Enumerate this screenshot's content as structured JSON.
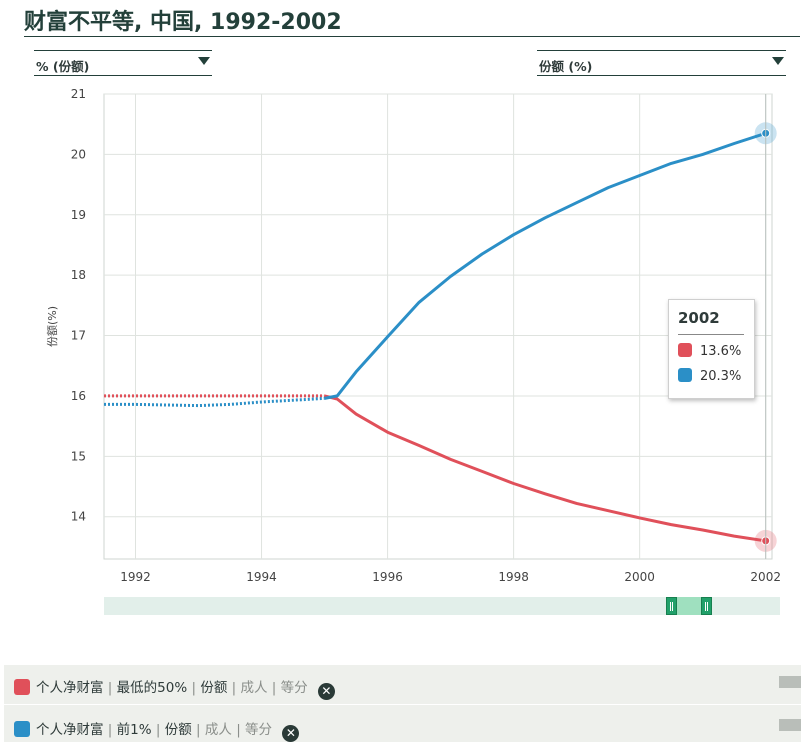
{
  "title": "财富不平等, 中国, 1992-2002",
  "dropdowns": {
    "left": "% (份额)",
    "right": "份额 (%)"
  },
  "colors": {
    "bottom50": "#e0505a",
    "top1": "#2b8fc7"
  },
  "tooltip": {
    "year": "2002",
    "rows": [
      "13.6%",
      "20.3%"
    ]
  },
  "legend": [
    {
      "parts": [
        "个人净财富",
        "最低的50%",
        "份额"
      ],
      "muted": [
        "成人",
        "等分"
      ],
      "close": "✕"
    },
    {
      "parts": [
        "个人净财富",
        "前1%",
        "份额"
      ],
      "muted": [
        "成人",
        "等分"
      ],
      "close": "✕"
    }
  ],
  "chart_data": {
    "type": "line",
    "title": "财富不平等, 中国, 1992-2002",
    "xlabel": "",
    "ylabel": "份额(%)",
    "xlim": [
      1991.5,
      2002.1
    ],
    "ylim": [
      13.3,
      21
    ],
    "x_ticks": [
      1992,
      1994,
      1996,
      1998,
      2000,
      2002
    ],
    "y_ticks": [
      14,
      15,
      16,
      17,
      18,
      19,
      20,
      21
    ],
    "grid": true,
    "series": [
      {
        "name": "个人净财富 | 最低的50% | 份额 | 成人 | 等分",
        "color": "#e0505a",
        "dotted_until": 1995,
        "x": [
          1991.5,
          1992,
          1993,
          1994,
          1995,
          1995.2,
          1995.5,
          1996,
          1996.5,
          1997,
          1997.5,
          1998,
          1998.5,
          1999,
          1999.5,
          2000,
          2000.5,
          2001,
          2001.5,
          2002
        ],
        "y": [
          16.0,
          16.0,
          16.0,
          16.0,
          16.0,
          15.95,
          15.7,
          15.4,
          15.18,
          14.95,
          14.75,
          14.55,
          14.38,
          14.22,
          14.1,
          13.98,
          13.87,
          13.78,
          13.68,
          13.6
        ]
      },
      {
        "name": "个人净财富 | 前1% | 份额 | 成人 | 等分",
        "color": "#2b8fc7",
        "dotted_until": 1995,
        "x": [
          1991.5,
          1992,
          1992.5,
          1993,
          1993.5,
          1994,
          1994.5,
          1995,
          1995.2,
          1995.5,
          1996,
          1996.5,
          1997,
          1997.5,
          1998,
          1998.5,
          1999,
          1999.5,
          2000,
          2000.5,
          2001,
          2001.5,
          2002
        ],
        "y": [
          15.86,
          15.86,
          15.85,
          15.84,
          15.86,
          15.9,
          15.93,
          15.96,
          16.0,
          16.4,
          16.98,
          17.55,
          17.98,
          18.35,
          18.67,
          18.95,
          19.2,
          19.45,
          19.65,
          19.85,
          20.0,
          20.18,
          20.35
        ]
      }
    ]
  }
}
